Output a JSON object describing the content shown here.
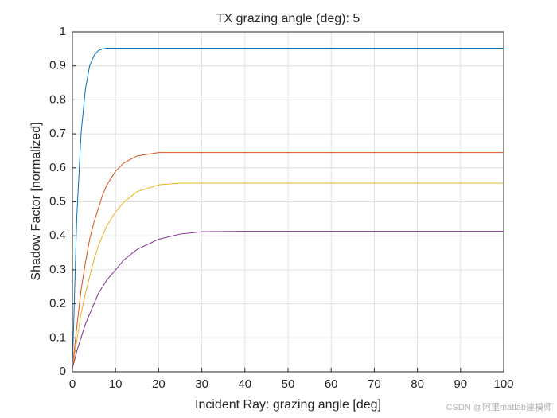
{
  "chart_data": {
    "type": "line",
    "title": "TX grazing angle (deg): 5",
    "x_label": "Incident Ray: grazing angle [deg]",
    "y_label": "Shadow Factor [normalized]",
    "x": [
      0,
      1,
      2,
      3,
      4,
      5,
      6,
      7,
      8,
      10,
      12,
      15,
      20,
      25,
      30,
      40,
      50,
      60,
      70,
      80,
      90,
      100
    ],
    "series": [
      {
        "color": "#0072bd",
        "values": [
          0.01,
          0.45,
          0.7,
          0.83,
          0.9,
          0.93,
          0.945,
          0.95,
          0.952,
          0.952,
          0.952,
          0.952,
          0.952,
          0.952,
          0.952,
          0.952,
          0.952,
          0.952,
          0.952,
          0.952,
          0.952,
          0.952
        ]
      },
      {
        "color": "#d95319",
        "values": [
          0.01,
          0.13,
          0.24,
          0.32,
          0.39,
          0.44,
          0.48,
          0.52,
          0.55,
          0.59,
          0.615,
          0.635,
          0.645,
          0.645,
          0.645,
          0.645,
          0.645,
          0.645,
          0.645,
          0.645,
          0.645,
          0.645
        ]
      },
      {
        "color": "#edb120",
        "values": [
          0.01,
          0.09,
          0.17,
          0.23,
          0.28,
          0.33,
          0.37,
          0.4,
          0.43,
          0.47,
          0.5,
          0.53,
          0.55,
          0.555,
          0.555,
          0.555,
          0.555,
          0.555,
          0.555,
          0.555,
          0.555,
          0.555
        ]
      },
      {
        "color": "#7e2f8e",
        "values": [
          0.01,
          0.06,
          0.1,
          0.14,
          0.17,
          0.2,
          0.23,
          0.25,
          0.27,
          0.3,
          0.33,
          0.36,
          0.39,
          0.405,
          0.412,
          0.413,
          0.413,
          0.413,
          0.413,
          0.413,
          0.413,
          0.413
        ]
      }
    ],
    "xlim": [
      0,
      100
    ],
    "xticks": [
      0,
      10,
      20,
      30,
      40,
      50,
      60,
      70,
      80,
      90,
      100
    ],
    "ylim": [
      0,
      1
    ],
    "yticks": [
      0,
      0.1,
      0.2,
      0.3,
      0.4,
      0.5,
      0.6,
      0.7,
      0.8,
      0.9,
      1
    ],
    "grid": true,
    "watermark": "CSDN @阿里matlab建模师"
  }
}
